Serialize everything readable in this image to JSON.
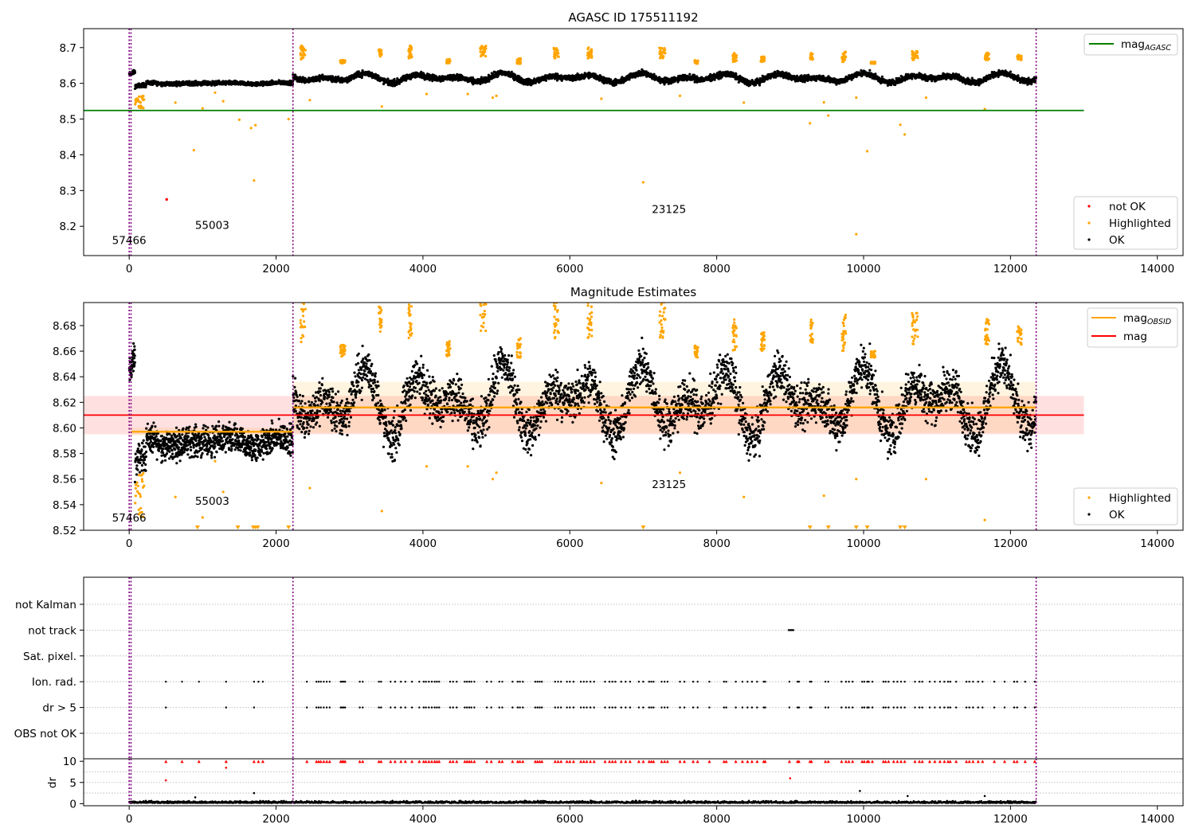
{
  "chart_data": [
    {
      "type": "scatter",
      "title": "AGASC ID 175511192",
      "xlabel": "",
      "ylabel": "",
      "xlim": [
        -620,
        14350
      ],
      "ylim": [
        8.118,
        8.753
      ],
      "xticks": [
        0,
        2000,
        4000,
        6000,
        8000,
        10000,
        12000,
        14000
      ],
      "yticks": [
        8.2,
        8.3,
        8.4,
        8.5,
        8.6,
        8.7
      ],
      "ytick_decimals": 1,
      "grid": false,
      "vlines": [
        0,
        25,
        2230,
        12350
      ],
      "vline_color": "#800080",
      "mag_agasc": 8.524,
      "legend_line": "mag",
      "legend_line_sub": "AGASC",
      "legend_points": [
        "not OK",
        "Highlighted",
        "OK"
      ],
      "legend_line_placement": "top-right",
      "legend_points_placement": "bottom-right",
      "obsid_labels": [
        {
          "text": "57466",
          "x": 0,
          "y": 8.15
        },
        {
          "text": "55003",
          "x": 1130,
          "y": 8.193
        },
        {
          "text": "23125",
          "x": 7350,
          "y": 8.237
        }
      ],
      "not_ok_points": [
        [
          510,
          8.275
        ]
      ],
      "highlighted_clusters": [
        {
          "x": [
            2330,
            2410
          ],
          "y": [
            8.665,
            8.705
          ]
        },
        {
          "x": [
            2870,
            2940
          ],
          "y": [
            8.655,
            8.665
          ]
        },
        {
          "x": [
            3400,
            3440
          ],
          "y": [
            8.675,
            8.695
          ]
        },
        {
          "x": [
            3800,
            3850
          ],
          "y": [
            8.67,
            8.705
          ]
        },
        {
          "x": [
            4320,
            4370
          ],
          "y": [
            8.655,
            8.668
          ]
        },
        {
          "x": [
            4780,
            4860
          ],
          "y": [
            8.675,
            8.705
          ]
        },
        {
          "x": [
            5280,
            5330
          ],
          "y": [
            8.655,
            8.67
          ]
        },
        {
          "x": [
            5780,
            5850
          ],
          "y": [
            8.67,
            8.7
          ]
        },
        {
          "x": [
            6240,
            6300
          ],
          "y": [
            8.67,
            8.7
          ]
        },
        {
          "x": [
            7220,
            7300
          ],
          "y": [
            8.67,
            8.7
          ]
        },
        {
          "x": [
            7700,
            7750
          ],
          "y": [
            8.655,
            8.665
          ]
        },
        {
          "x": [
            8220,
            8270
          ],
          "y": [
            8.66,
            8.685
          ]
        },
        {
          "x": [
            8600,
            8650
          ],
          "y": [
            8.66,
            8.675
          ]
        },
        {
          "x": [
            9270,
            9310
          ],
          "y": [
            8.665,
            8.685
          ]
        },
        {
          "x": [
            9700,
            9760
          ],
          "y": [
            8.66,
            8.69
          ]
        },
        {
          "x": [
            10100,
            10160
          ],
          "y": [
            8.655,
            8.66
          ]
        },
        {
          "x": [
            10660,
            10740
          ],
          "y": [
            8.665,
            8.69
          ]
        },
        {
          "x": [
            11650,
            11710
          ],
          "y": [
            8.665,
            8.685
          ]
        },
        {
          "x": [
            12090,
            12150
          ],
          "y": [
            8.665,
            8.68
          ]
        },
        {
          "x": [
            80,
            220
          ],
          "y": [
            8.53,
            8.565
          ]
        }
      ],
      "highlighted_outliers": [
        [
          880,
          8.413
        ],
        [
          630,
          8.546
        ],
        [
          1500,
          8.498
        ],
        [
          1660,
          8.475
        ],
        [
          1700,
          8.328
        ],
        [
          1720,
          8.483
        ],
        [
          2170,
          8.5
        ],
        [
          1170,
          8.574
        ],
        [
          1280,
          8.55
        ],
        [
          2460,
          8.553
        ],
        [
          3440,
          8.535
        ],
        [
          4050,
          8.57
        ],
        [
          4610,
          8.57
        ],
        [
          4950,
          8.56
        ],
        [
          5000,
          8.565
        ],
        [
          6430,
          8.557
        ],
        [
          7000,
          8.323
        ],
        [
          7500,
          8.565
        ],
        [
          8370,
          8.546
        ],
        [
          9270,
          8.488
        ],
        [
          9460,
          8.547
        ],
        [
          9520,
          8.51
        ],
        [
          9900,
          8.56
        ],
        [
          9900,
          8.178
        ],
        [
          10050,
          8.41
        ],
        [
          10500,
          8.484
        ],
        [
          10560,
          8.457
        ],
        [
          10850,
          8.56
        ],
        [
          11650,
          8.528
        ],
        [
          1000,
          8.53
        ]
      ],
      "ok_segments": [
        {
          "x": [
            0,
            80
          ],
          "center": 8.625,
          "amp": 0.012,
          "noise": 0.006,
          "n": 40
        },
        {
          "x": [
            80,
            230
          ],
          "center": 8.585,
          "amp": 0.01,
          "noise": 0.006,
          "n": 60
        },
        {
          "x": [
            230,
            2230
          ],
          "center": 8.6,
          "amp": 0.002,
          "noise": 0.006,
          "n": 900
        },
        {
          "x": [
            2230,
            12350
          ],
          "center": 8.615,
          "amp": 0.014,
          "noise": 0.009,
          "n": 3600
        }
      ]
    },
    {
      "type": "scatter",
      "title": "Magnitude Estimates",
      "xlabel": "",
      "ylabel": "",
      "xlim": [
        -620,
        14350
      ],
      "ylim": [
        8.52,
        8.698
      ],
      "xticks": [
        0,
        2000,
        4000,
        6000,
        8000,
        10000,
        12000,
        14000
      ],
      "yticks": [
        8.52,
        8.54,
        8.56,
        8.58,
        8.6,
        8.62,
        8.64,
        8.66,
        8.68
      ],
      "ytick_decimals": 2,
      "grid": false,
      "vlines": [
        0,
        25,
        2230,
        12350
      ],
      "mag": 8.61,
      "mag_band": [
        8.595,
        8.625
      ],
      "mag_obsid_segments": [
        {
          "x": [
            30,
            2230
          ],
          "y": 8.597,
          "band": [
            8.594,
            8.6
          ]
        },
        {
          "x": [
            2230,
            12350
          ],
          "y": 8.616,
          "band": [
            8.596,
            8.636
          ]
        }
      ],
      "legend_lines": [
        "mag",
        "mag"
      ],
      "legend_line_sub": "OBSID",
      "legend_points": [
        "Highlighted",
        "OK"
      ],
      "obsid_labels": [
        {
          "text": "57466",
          "x": 0,
          "y": 8.527
        },
        {
          "text": "55003",
          "x": 1130,
          "y": 8.54
        },
        {
          "text": "23125",
          "x": 7350,
          "y": 8.553
        }
      ],
      "clipped_low_x": [
        930,
        1480,
        1690,
        1720,
        1750,
        2170,
        7000,
        9270,
        9520,
        9900,
        10050,
        10500,
        10560
      ]
    },
    {
      "type": "scatter",
      "title": "",
      "xlabel": "",
      "ylabel": "",
      "xlim": [
        -620,
        14350
      ],
      "xticks": [
        0,
        2000,
        4000,
        6000,
        8000,
        10000,
        12000,
        14000
      ],
      "flag_rows": [
        "not Kalman",
        "not track",
        "Sat. pixel.",
        "Ion. rad.",
        "dr > 5",
        "OBS not OK"
      ],
      "dr_label": "dr",
      "dr_ticks": [
        0,
        5,
        10
      ],
      "dr_ylim": [
        -0.5,
        10.6
      ],
      "not_track_x": [
        8980,
        9050
      ],
      "flag_x": [
        500,
        720,
        950,
        1320,
        1700,
        1760,
        1820,
        2420,
        2550,
        2580,
        2610,
        2650,
        2690,
        2730,
        2880,
        2900,
        2920,
        2940,
        3140,
        3180,
        3400,
        3430,
        3560,
        3620,
        3700,
        3760,
        3850,
        3950,
        4010,
        4040,
        4080,
        4120,
        4160,
        4190,
        4220,
        4370,
        4410,
        4460,
        4570,
        4600,
        4630,
        4660,
        4700,
        4870,
        4930,
        5040,
        5080,
        5220,
        5290,
        5320,
        5360,
        5530,
        5560,
        5590,
        5620,
        5800,
        5840,
        5880,
        5960,
        6000,
        6050,
        6150,
        6190,
        6230,
        6280,
        6330,
        6480,
        6540,
        6580,
        6620,
        6700,
        6760,
        6820,
        6940,
        7000,
        7080,
        7110,
        7140,
        7250,
        7290,
        7330,
        7500,
        7560,
        7680,
        7740,
        7900,
        8100,
        8130,
        8260,
        8350,
        8420,
        8480,
        8550,
        8640,
        8660,
        8990,
        9100,
        9120,
        9270,
        9290,
        9480,
        9520,
        9700,
        9760,
        9800,
        9850,
        9980,
        10010,
        10050,
        10070,
        10120,
        10270,
        10300,
        10340,
        10410,
        10460,
        10510,
        10560,
        10700,
        10760,
        10800,
        10900,
        10970,
        11040,
        11100,
        11150,
        11180,
        11260,
        11400,
        11440,
        11490,
        11560,
        11620,
        11780,
        11920,
        12050,
        12090,
        12200,
        12330
      ],
      "ion_only_x": [
        720,
        950,
        1760,
        1820
      ],
      "dr_outliers": [
        [
          500,
          5.5
        ],
        [
          1320,
          8.5
        ],
        [
          9000,
          6.0
        ],
        [
          900,
          1.5
        ],
        [
          1700,
          2.5
        ],
        [
          9950,
          3.0
        ],
        [
          10600,
          1.8
        ],
        [
          11650,
          1.8
        ]
      ]
    }
  ]
}
